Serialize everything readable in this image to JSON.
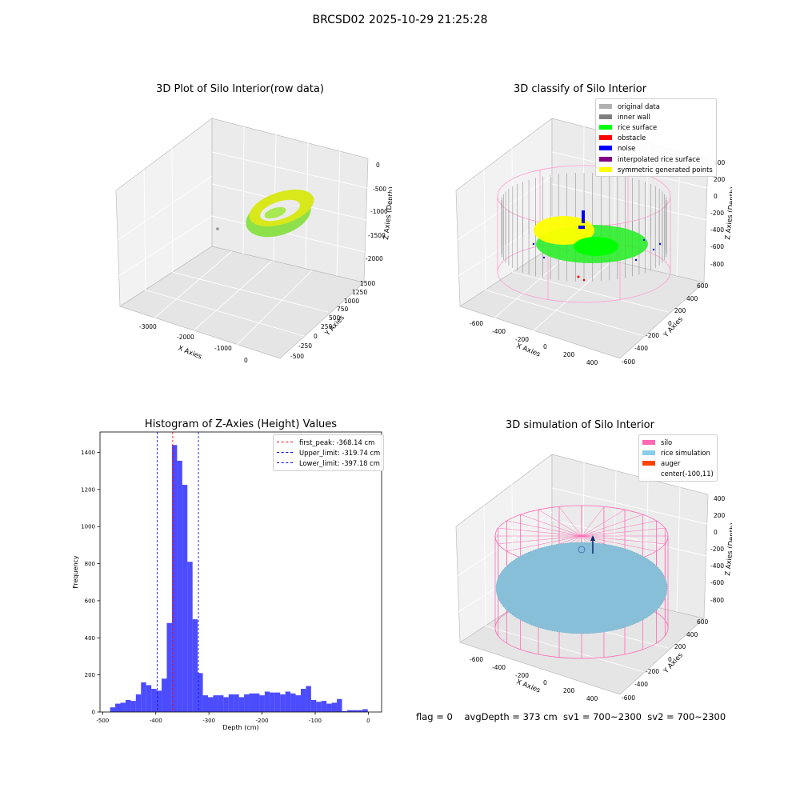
{
  "suptitle": "BRCSD02 2025-10-29 21:25:28",
  "footer": "flag = 0    avgDepth = 373 cm  sv1 = 700~2300  sv2 = 700~2300",
  "panels": {
    "p1": {
      "title": "3D Plot of Silo Interior(row data)",
      "xlabel": "X Axies",
      "ylabel": "Y Axies",
      "zlabel": "Z Axies (Depth)",
      "xticks": [
        "-3000",
        "-2000",
        "-1000",
        "0"
      ],
      "yticks": [
        "1500",
        "1250",
        "1000",
        "750",
        "500",
        "250",
        "0",
        "-250",
        "-500"
      ],
      "zticks": [
        "0",
        "-500",
        "-1000",
        "-1500",
        "-2000"
      ]
    },
    "p2": {
      "title": "3D classify of Silo Interior",
      "xlabel": "X Axies",
      "ylabel": "Y Axies",
      "zlabel": "Z Axies (Depth)",
      "xticks": [
        "-600",
        "-400",
        "-200",
        "0",
        "200",
        "400"
      ],
      "yticks": [
        "600",
        "400",
        "200",
        "0",
        "-200",
        "-400",
        "-600"
      ],
      "zticks": [
        "400",
        "200",
        "0",
        "-200",
        "-400",
        "-600",
        "-800"
      ],
      "legend": [
        {
          "label": "original data",
          "color": "#b0b0b0"
        },
        {
          "label": "inner wall",
          "color": "#808080"
        },
        {
          "label": "rice surface",
          "color": "#00ff00"
        },
        {
          "label": "obstacle",
          "color": "#ff0000"
        },
        {
          "label": "noise",
          "color": "#0000ff"
        },
        {
          "label": "interpolated rice surface",
          "color": "#800080"
        },
        {
          "label": "symmetric generated points",
          "color": "#ffff00"
        }
      ]
    },
    "p3": {
      "title": "Histogram of Z-Axies (Height) Values",
      "legend": [
        {
          "label": "first_peak: -368.14 cm",
          "color": "#ff0000"
        },
        {
          "label": "Upper_limit: -319.74 cm",
          "color": "#0000ff"
        },
        {
          "label": "Lower_limit: -397.18 cm",
          "color": "#0000ff"
        }
      ]
    },
    "p4": {
      "title": "3D simulation of Silo Interior",
      "xlabel": "X Axies",
      "ylabel": "Y Axies",
      "zlabel": "Z Axies (Depth)",
      "xticks": [
        "-600",
        "-400",
        "-200",
        "0",
        "200",
        "400"
      ],
      "yticks": [
        "600",
        "400",
        "200",
        "0",
        "-200",
        "-400",
        "-600"
      ],
      "zticks": [
        "400",
        "200",
        "0",
        "-200",
        "-400",
        "-600",
        "-800"
      ],
      "legend": [
        {
          "label": "silo",
          "color": "#ff69b4"
        },
        {
          "label": "rice simulation",
          "color": "#87ceeb"
        },
        {
          "label": "auger",
          "color": "#ff4500"
        },
        {
          "label": "center(-100,11)",
          "color": ""
        }
      ]
    }
  },
  "chart_data": {
    "type": "bar",
    "title": "Histogram of Z-Axies (Height) Values",
    "xlabel": "Depth (cm)",
    "ylabel": "Frequency",
    "xlim": [
      -505,
      25
    ],
    "ylim": [
      0,
      1510
    ],
    "xticks": [
      -500,
      -400,
      -300,
      -200,
      -100,
      0
    ],
    "yticks": [
      0,
      200,
      400,
      600,
      800,
      1000,
      1200,
      1400
    ],
    "bin_start": -486,
    "bin_width": 9.7,
    "counts": [
      25,
      45,
      50,
      65,
      60,
      95,
      160,
      145,
      125,
      115,
      180,
      480,
      1440,
      1355,
      1225,
      810,
      500,
      210,
      90,
      80,
      90,
      90,
      80,
      95,
      95,
      80,
      95,
      100,
      100,
      90,
      110,
      105,
      105,
      95,
      110,
      100,
      90,
      125,
      140,
      65,
      55,
      60,
      45,
      50,
      70,
      5,
      10,
      10,
      10,
      15
    ],
    "bar_color": "#0000ff",
    "vlines": [
      {
        "label": "first_peak: -368.14 cm",
        "x": -368.14,
        "color": "#ff0000"
      },
      {
        "label": "Upper_limit: -319.74 cm",
        "x": -319.74,
        "color": "#0000ff"
      },
      {
        "label": "Lower_limit: -397.18 cm",
        "x": -397.18,
        "color": "#0000ff"
      }
    ],
    "legend_position": "top-right",
    "grid": false
  }
}
